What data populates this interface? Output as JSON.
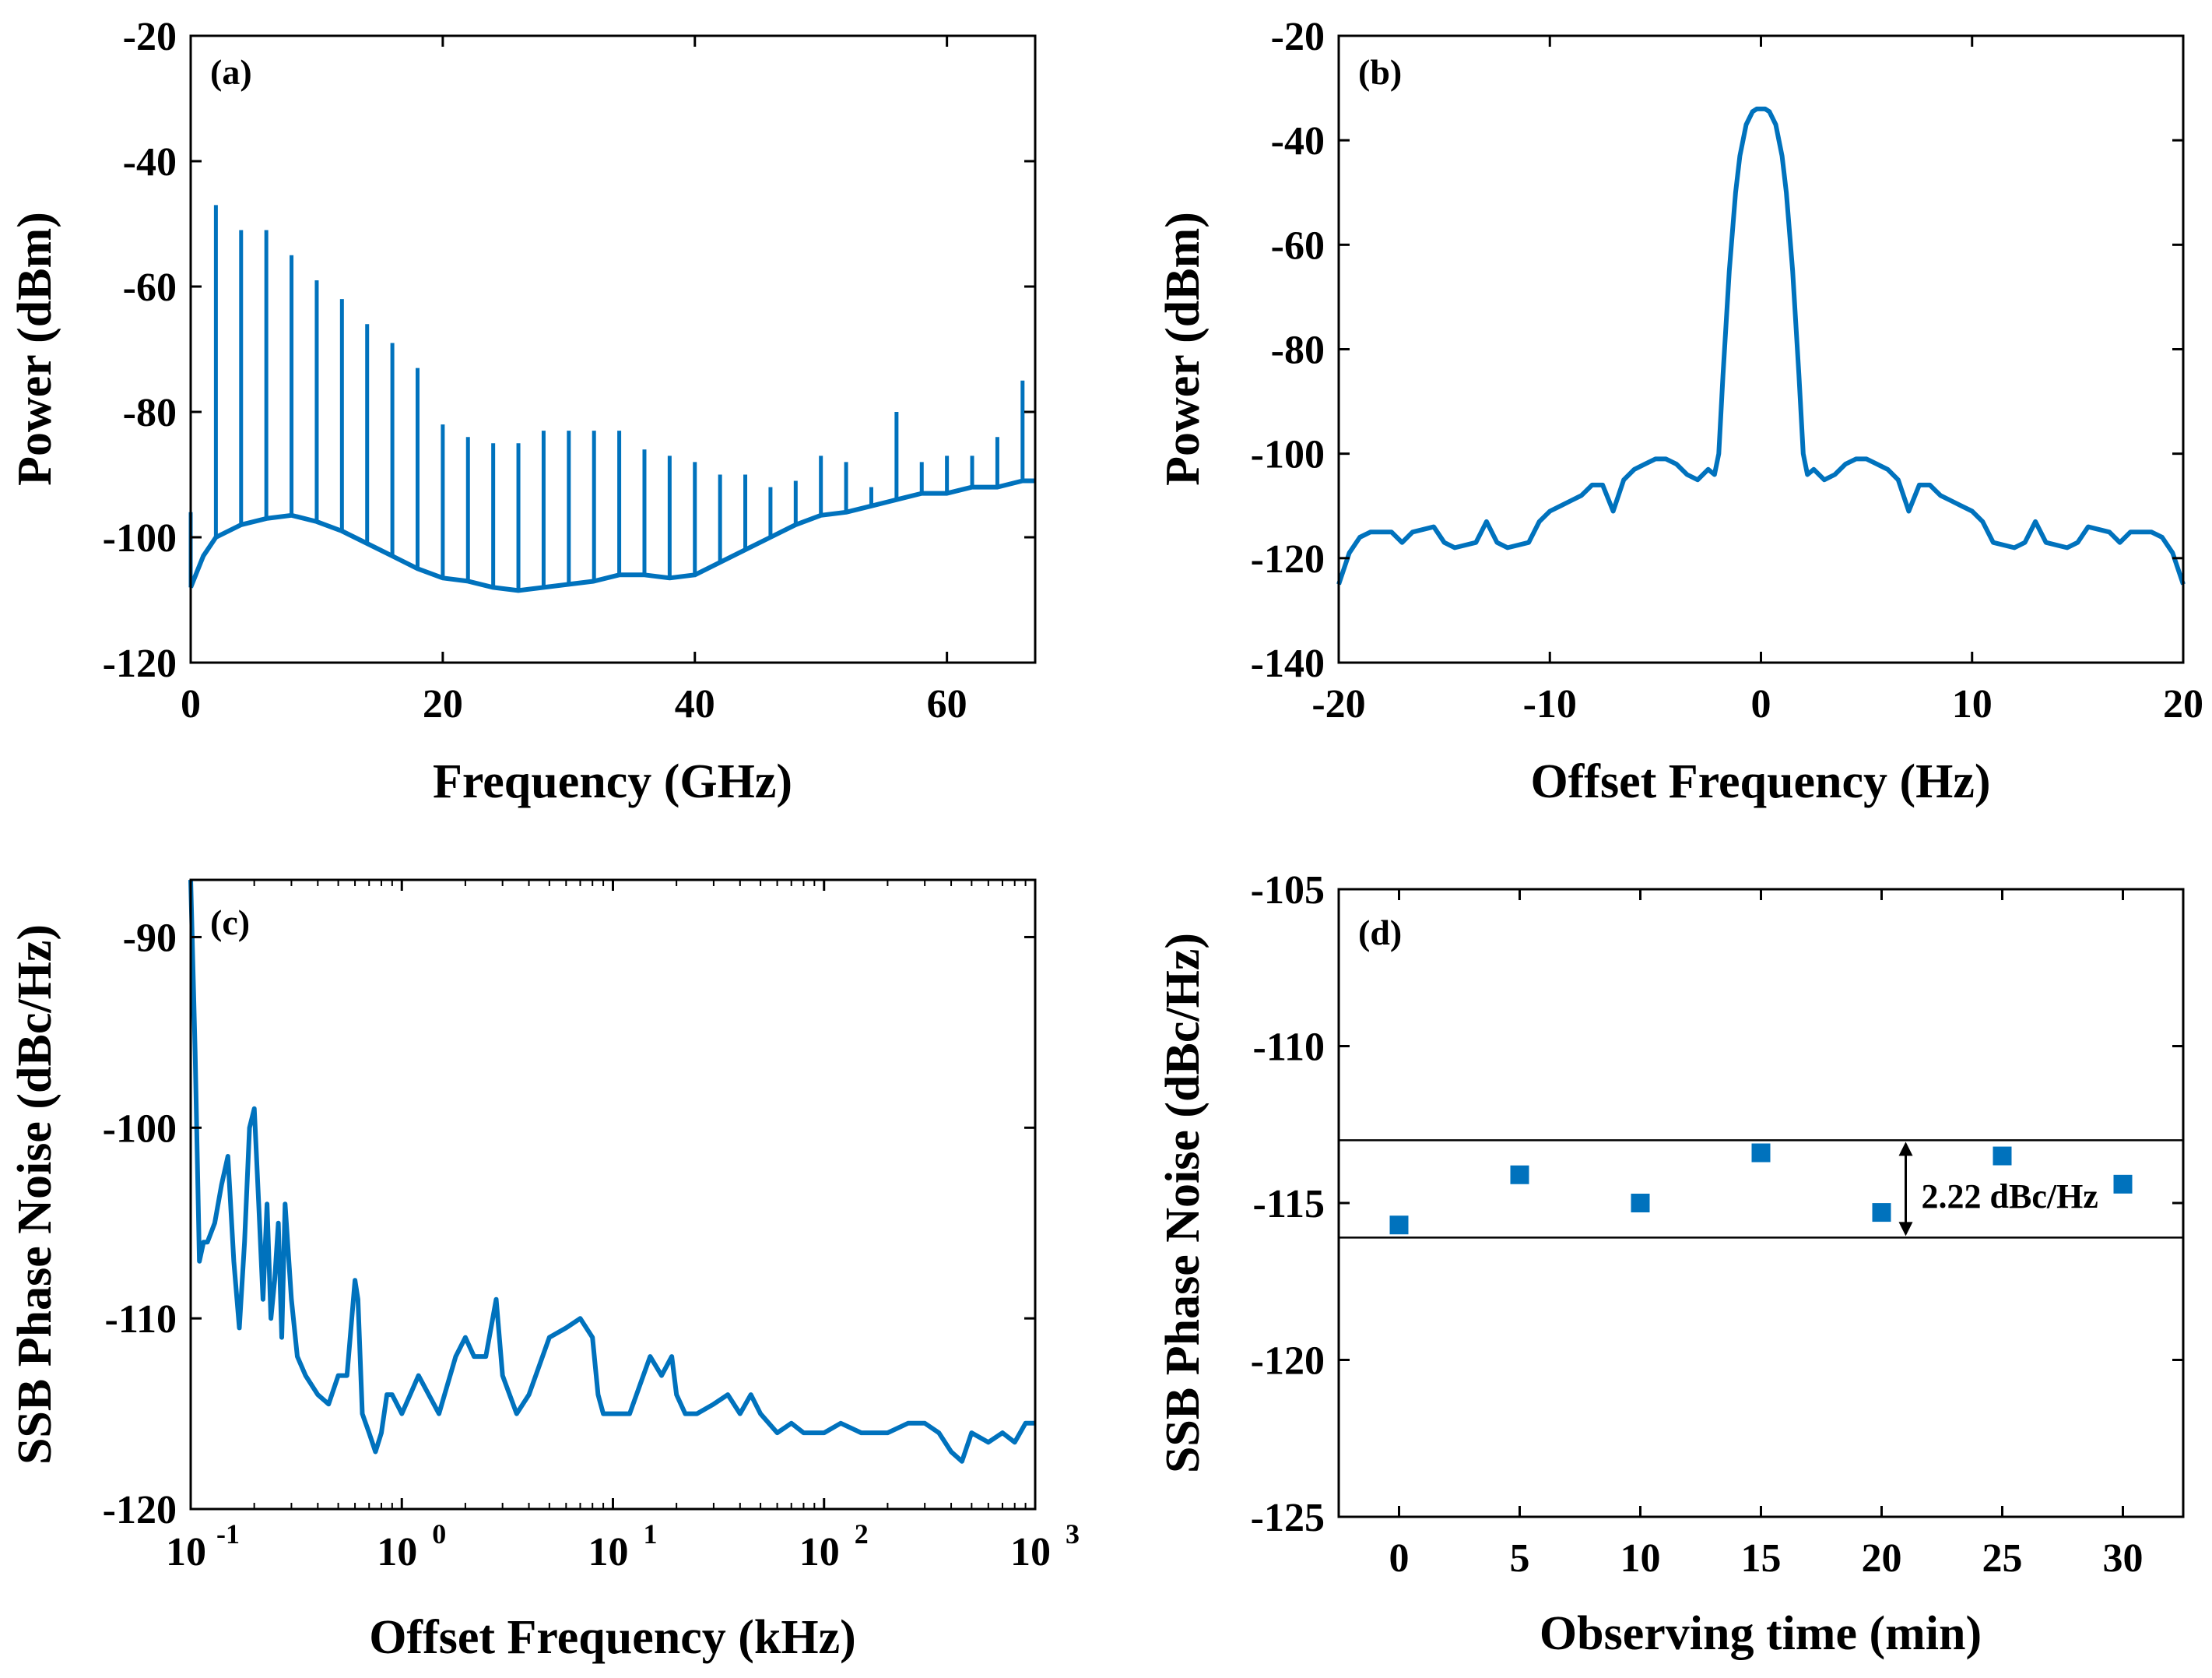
{
  "colors": {
    "series": "#0072BD",
    "axis": "#000000",
    "background": "#ffffff"
  },
  "chart_data": [
    {
      "id": "a",
      "type": "line",
      "panel_label": "(a)",
      "xlabel": "Frequency (GHz)",
      "ylabel": "Power (dBm)",
      "xlim": [
        0,
        67
      ],
      "ylim": [
        -120,
        -20
      ],
      "xticks": [
        0,
        20,
        40,
        60
      ],
      "xtick_labels": [
        "0",
        "20",
        "40",
        "60"
      ],
      "yticks": [
        -120,
        -100,
        -80,
        -60,
        -40,
        -20
      ],
      "ytick_labels": [
        "-120",
        "-100",
        "-80",
        "-60",
        "-40",
        "-20"
      ],
      "noise_floor": {
        "x": [
          0,
          1,
          2,
          4,
          6,
          8,
          10,
          12,
          14,
          16,
          18,
          20,
          22,
          24,
          26,
          28,
          30,
          32,
          34,
          36,
          38,
          40,
          42,
          44,
          46,
          48,
          50,
          52,
          54,
          56,
          58,
          60,
          62,
          64,
          66,
          67
        ],
        "y": [
          -108,
          -103,
          -100,
          -98,
          -97,
          -96.5,
          -97.5,
          -99,
          -101,
          -103,
          -105,
          -106.5,
          -107,
          -108,
          -108.5,
          -108,
          -107.5,
          -107,
          -106,
          -106,
          -106.5,
          -106,
          -104,
          -102,
          -100,
          -98,
          -96.5,
          -96,
          -95,
          -94,
          -93,
          -93,
          -92,
          -92,
          -91,
          -91
        ]
      },
      "peaks": {
        "x": [
          0,
          2,
          4,
          6,
          8,
          10,
          12,
          14,
          16,
          18,
          20,
          22,
          24,
          26,
          28,
          30,
          32,
          34,
          36,
          38,
          40,
          42,
          44,
          46,
          48,
          50,
          52,
          54,
          56,
          58,
          60,
          62,
          64,
          66
        ],
        "y": [
          -96,
          -47,
          -51,
          -51,
          -55,
          -59,
          -62,
          -66,
          -69,
          -73,
          -82,
          -84,
          -85,
          -85,
          -83,
          -83,
          -83,
          -83,
          -86,
          -87,
          -88,
          -90,
          -90,
          -92,
          -91,
          -87,
          -88,
          -92,
          -80,
          -88,
          -87,
          -87,
          -84,
          -75
        ]
      }
    },
    {
      "id": "b",
      "type": "line",
      "panel_label": "(b)",
      "xlabel": "Offset Frequency (Hz)",
      "ylabel": "Power (dBm)",
      "xlim": [
        -20,
        20
      ],
      "ylim": [
        -140,
        -20
      ],
      "xticks": [
        -20,
        -10,
        0,
        10,
        20
      ],
      "xtick_labels": [
        "-20",
        "-10",
        "0",
        "10",
        "20"
      ],
      "yticks": [
        -140,
        -120,
        -100,
        -80,
        -60,
        -40,
        -20
      ],
      "ytick_labels": [
        "-140",
        "-120",
        "-100",
        "-80",
        "-60",
        "-40",
        "-20"
      ],
      "series": {
        "x": [
          -20,
          -19.5,
          -19,
          -18.5,
          -17.5,
          -17,
          -16.5,
          -15.5,
          -15,
          -14.5,
          -13.5,
          -13,
          -12.5,
          -12,
          -11,
          -10.5,
          -10,
          -9.5,
          -9,
          -8.5,
          -8,
          -7.5,
          -7,
          -6.5,
          -6,
          -5.5,
          -5,
          -4.5,
          -4,
          -3.5,
          -3,
          -2.5,
          -2.2,
          -2,
          -1.8,
          -1.5,
          -1.2,
          -1,
          -0.7,
          -0.4,
          -0.2,
          0,
          0.2,
          0.4,
          0.7,
          1,
          1.2,
          1.5,
          1.8,
          2,
          2.2,
          2.5,
          3,
          3.5,
          4,
          4.5,
          5,
          5.5,
          6,
          6.5,
          7,
          7.5,
          8,
          8.5,
          9,
          9.5,
          10,
          10.5,
          11,
          12,
          12.5,
          13,
          13.5,
          14.5,
          15,
          15.5,
          16.5,
          17,
          17.5,
          18.5,
          19,
          19.5,
          20
        ],
        "y": [
          -125,
          -119,
          -116,
          -115,
          -115,
          -117,
          -115,
          -114,
          -117,
          -118,
          -117,
          -113,
          -117,
          -118,
          -117,
          -113,
          -111,
          -110,
          -109,
          -108,
          -106,
          -106,
          -111,
          -105,
          -103,
          -102,
          -101,
          -101,
          -102,
          -104,
          -105,
          -103,
          -104,
          -100,
          -85,
          -65,
          -50,
          -43,
          -37,
          -34.5,
          -34,
          -34,
          -34,
          -34.5,
          -37,
          -43,
          -50,
          -65,
          -85,
          -100,
          -104,
          -103,
          -105,
          -104,
          -102,
          -101,
          -101,
          -102,
          -103,
          -105,
          -111,
          -106,
          -106,
          -108,
          -109,
          -110,
          -111,
          -113,
          -117,
          -118,
          -117,
          -113,
          -117,
          -118,
          -117,
          -114,
          -115,
          -117,
          -115,
          -115,
          -116,
          -119,
          -125
        ]
      }
    },
    {
      "id": "c",
      "type": "line",
      "panel_label": "(c)",
      "xlabel": "Offset Frequency (kHz)",
      "ylabel": "SSB Phase Noise (dBc/Hz)",
      "xscale": "log",
      "xlim": [
        0.1,
        1000
      ],
      "ylim": [
        -120,
        -87
      ],
      "xticks": [
        0.1,
        1,
        10,
        100,
        1000
      ],
      "xtick_labels": [
        {
          "base": "10",
          "exp": "-1"
        },
        {
          "base": "10",
          "exp": "0"
        },
        {
          "base": "10",
          "exp": "1"
        },
        {
          "base": "10",
          "exp": "2"
        },
        {
          "base": "10",
          "exp": "3"
        }
      ],
      "yticks": [
        -120,
        -110,
        -100,
        -90
      ],
      "ytick_labels": [
        "-120",
        "-110",
        "-100",
        "-90"
      ],
      "series": {
        "x": [
          0.1,
          0.105,
          0.11,
          0.115,
          0.12,
          0.13,
          0.14,
          0.15,
          0.16,
          0.17,
          0.18,
          0.19,
          0.2,
          0.21,
          0.22,
          0.23,
          0.24,
          0.25,
          0.26,
          0.27,
          0.28,
          0.3,
          0.32,
          0.35,
          0.4,
          0.45,
          0.5,
          0.55,
          0.6,
          0.62,
          0.65,
          0.7,
          0.75,
          0.8,
          0.85,
          0.9,
          1.0,
          1.2,
          1.5,
          1.8,
          2.0,
          2.2,
          2.5,
          2.8,
          3.0,
          3.5,
          4.0,
          5.0,
          6.0,
          7.0,
          8.0,
          8.5,
          9.0,
          10,
          12,
          15,
          17,
          19,
          20,
          22,
          25,
          30,
          35,
          40,
          45,
          50,
          60,
          70,
          80,
          100,
          120,
          150,
          200,
          250,
          300,
          350,
          400,
          450,
          500,
          600,
          700,
          800,
          900,
          1000
        ],
        "y": [
          -87,
          -96,
          -107,
          -106,
          -106,
          -105,
          -103,
          -101.5,
          -107,
          -110.5,
          -106,
          -100,
          -99,
          -104,
          -109,
          -104,
          -110,
          -108,
          -105,
          -111,
          -104,
          -109,
          -112,
          -113,
          -114,
          -114.5,
          -113,
          -113,
          -108,
          -109,
          -115,
          -116,
          -117,
          -116,
          -114,
          -114,
          -115,
          -113,
          -115,
          -112,
          -111,
          -112,
          -112,
          -109,
          -113,
          -115,
          -114,
          -111,
          -110.5,
          -110,
          -111,
          -114,
          -115,
          -115,
          -115,
          -112,
          -113,
          -112,
          -114,
          -115,
          -115,
          -114.5,
          -114,
          -115,
          -114,
          -115,
          -116,
          -115.5,
          -116,
          -116,
          -115.5,
          -116,
          -116,
          -115.5,
          -115.5,
          -116,
          -117,
          -117.5,
          -116,
          -116.5,
          -116,
          -116.5,
          -115.5,
          -115.5
        ]
      }
    },
    {
      "id": "d",
      "type": "scatter",
      "panel_label": "(d)",
      "xlabel": "Observing time (min)",
      "ylabel": "SSB Phase Noise (dBc/Hz)",
      "xlim": [
        -2.5,
        32.5
      ],
      "ylim": [
        -125,
        -105
      ],
      "xticks": [
        0,
        5,
        10,
        15,
        20,
        25,
        30
      ],
      "xtick_labels": [
        "0",
        "5",
        "10",
        "15",
        "20",
        "25",
        "30"
      ],
      "yticks": [
        -125,
        -120,
        -115,
        -110,
        -105
      ],
      "ytick_labels": [
        "-125",
        "-120",
        "-115",
        "-110",
        "-105"
      ],
      "x": [
        0,
        5,
        10,
        15,
        20,
        25,
        30
      ],
      "y": [
        -115.7,
        -114.1,
        -115.0,
        -113.4,
        -115.3,
        -113.5,
        -114.4
      ],
      "reference_lines": [
        -113.0,
        -116.1
      ],
      "annotation": "2.22 dBc/Hz"
    }
  ]
}
